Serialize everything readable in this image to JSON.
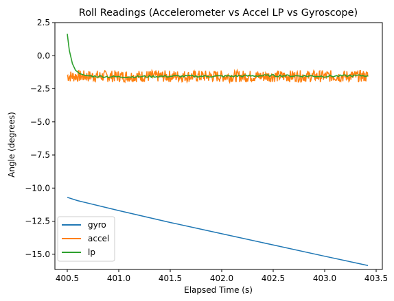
{
  "chart_data": {
    "type": "line",
    "title": "Roll Readings (Accelerometer vs Accel LP vs Gyroscope)",
    "xlabel": "Elapsed Time (s)",
    "ylabel": "Angle (degrees)",
    "xlim": [
      400.38,
      403.56
    ],
    "ylim": [
      -16.15,
      2.5
    ],
    "xticks": [
      400.5,
      401.0,
      401.5,
      402.0,
      402.5,
      403.0,
      403.5
    ],
    "xtick_labels": [
      "400.5",
      "401.0",
      "401.5",
      "402.0",
      "402.5",
      "403.0",
      "403.5"
    ],
    "yticks": [
      2.5,
      0.0,
      -2.5,
      -5.0,
      -7.5,
      -10.0,
      -12.5,
      -15.0
    ],
    "ytick_labels": [
      "2.5",
      "0.0",
      "−2.5",
      "−5.0",
      "−7.5",
      "−10.0",
      "−12.5",
      "−15.0"
    ],
    "grid": false,
    "legend_position": "lower-left",
    "series": [
      {
        "name": "gyro",
        "color": "#1f77b4",
        "x": [
          400.5,
          400.6,
          401.0,
          401.5,
          402.0,
          402.5,
          403.0,
          403.42
        ],
        "y": [
          -10.7,
          -10.95,
          -11.7,
          -12.6,
          -13.45,
          -14.3,
          -15.15,
          -15.85
        ]
      },
      {
        "name": "accel",
        "color": "#ff7f0e",
        "x_range": [
          400.5,
          403.42
        ],
        "center": -1.55,
        "noise_amplitude": 0.45
      },
      {
        "name": "lp",
        "color": "#2ca02c",
        "x": [
          400.5,
          400.52,
          400.55,
          400.58,
          400.62,
          400.68,
          400.75,
          401.0,
          401.5,
          402.0,
          402.5,
          403.0,
          403.42
        ],
        "y": [
          1.65,
          0.4,
          -0.6,
          -1.1,
          -1.35,
          -1.5,
          -1.55,
          -1.6,
          -1.55,
          -1.55,
          -1.5,
          -1.55,
          -1.5
        ]
      }
    ]
  }
}
